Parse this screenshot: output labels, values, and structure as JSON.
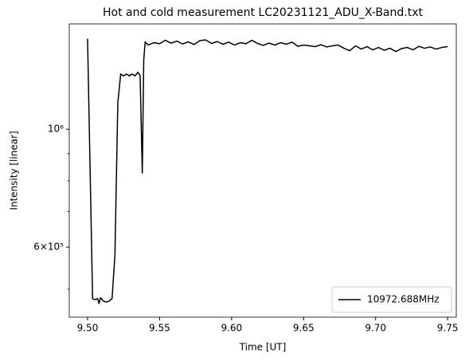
{
  "chart_data": {
    "type": "line",
    "title": "Hot and cold measurement LC20231121_ADU_X-Band.txt",
    "xlabel": "Time [UT]",
    "ylabel": "Intensity [linear]",
    "yscale": "log",
    "legend": "lower right",
    "xlim": [
      9.4873,
      9.756
    ],
    "ylim": [
      443000,
      1578000
    ],
    "xticks": [
      {
        "value": 9.5,
        "label": "9.50"
      },
      9.55,
      {
        "value": 9.6,
        "label": "9.60"
      },
      9.65,
      {
        "value": 9.7,
        "label": "9.70"
      },
      9.75
    ],
    "yticks": [
      {
        "value": 600000,
        "label": "6×10⁵"
      },
      {
        "value": 1000000,
        "label": "10⁶"
      }
    ],
    "yminor_ticks": [
      500000,
      700000,
      800000,
      900000
    ],
    "x": [
      9.5,
      9.5035,
      9.505,
      9.507,
      9.508,
      9.509,
      9.511,
      9.513,
      9.515,
      9.517,
      9.519,
      9.521,
      9.523,
      9.525,
      9.527,
      9.529,
      9.531,
      9.533,
      9.535,
      9.5365,
      9.538,
      9.539,
      9.54,
      9.542,
      9.546,
      9.55,
      9.554,
      9.558,
      9.562,
      9.566,
      9.57,
      9.574,
      9.578,
      9.582,
      9.586,
      9.59,
      9.594,
      9.598,
      9.602,
      9.606,
      9.61,
      9.614,
      9.618,
      9.622,
      9.626,
      9.63,
      9.634,
      9.638,
      9.642,
      9.646,
      9.65,
      9.654,
      9.658,
      9.662,
      9.666,
      9.67,
      9.674,
      9.678,
      9.682,
      9.686,
      9.69,
      9.694,
      9.698,
      9.702,
      9.706,
      9.71,
      9.714,
      9.718,
      9.722,
      9.726,
      9.73,
      9.734,
      9.738,
      9.742,
      9.746,
      9.75
    ],
    "series": [
      {
        "name": "10972.688MHz",
        "color": "#000000",
        "values": [
          1480000,
          480000,
          478000,
          480000,
          470000,
          482000,
          475000,
          473000,
          475000,
          480000,
          580000,
          1120000,
          1270000,
          1260000,
          1270000,
          1260000,
          1270000,
          1260000,
          1280000,
          1260000,
          827000,
          1350000,
          1460000,
          1440000,
          1455000,
          1448000,
          1470000,
          1452000,
          1465000,
          1447000,
          1460000,
          1443000,
          1468000,
          1472000,
          1450000,
          1462000,
          1445000,
          1458000,
          1440000,
          1455000,
          1448000,
          1470000,
          1450000,
          1438000,
          1452000,
          1440000,
          1455000,
          1445000,
          1458000,
          1432000,
          1440000,
          1435000,
          1430000,
          1442000,
          1428000,
          1435000,
          1440000,
          1420000,
          1405000,
          1435000,
          1415000,
          1430000,
          1410000,
          1425000,
          1408000,
          1420000,
          1400000,
          1418000,
          1425000,
          1410000,
          1432000,
          1420000,
          1428000,
          1415000,
          1425000,
          1430000
        ]
      }
    ]
  }
}
